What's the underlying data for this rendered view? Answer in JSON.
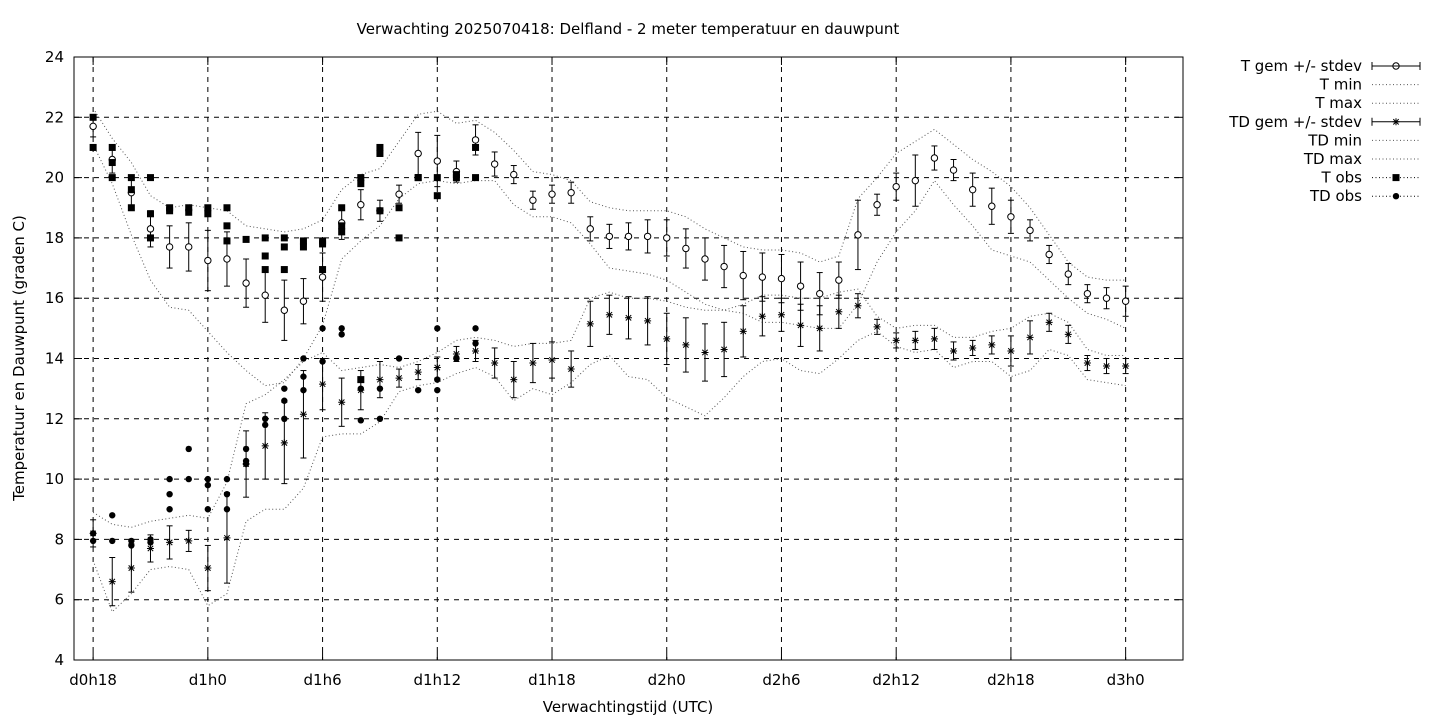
{
  "chart_data": {
    "type": "scatter",
    "title": "Verwachting 2025070418: Delfland - 2 meter temperatuur en dauwpunt",
    "xlabel": "Verwachtingstijd (UTC)",
    "ylabel": "Temperatuur en Dauwpunt (graden C)",
    "xlim": [
      -1,
      57
    ],
    "ylim": [
      4,
      24
    ],
    "x_unit": "hours since d0h18",
    "yticks": [
      4,
      6,
      8,
      10,
      12,
      14,
      16,
      18,
      20,
      22,
      24
    ],
    "xticks": [
      {
        "x": 0,
        "label": "d0h18"
      },
      {
        "x": 6,
        "label": "d1h0"
      },
      {
        "x": 12,
        "label": "d1h6"
      },
      {
        "x": 18,
        "label": "d1h12"
      },
      {
        "x": 24,
        "label": "d1h18"
      },
      {
        "x": 30,
        "label": "d2h0"
      },
      {
        "x": 36,
        "label": "d2h6"
      },
      {
        "x": 42,
        "label": "d2h12"
      },
      {
        "x": 48,
        "label": "d2h18"
      },
      {
        "x": 54,
        "label": "d3h0"
      }
    ],
    "grid": true,
    "legend_position": "outside-top-right",
    "legend": [
      {
        "key": "t_gem",
        "label": "T gem +/- stdev"
      },
      {
        "key": "t_min",
        "label": "T min"
      },
      {
        "key": "t_max",
        "label": "T max"
      },
      {
        "key": "td_gem",
        "label": "TD gem +/- stdev"
      },
      {
        "key": "td_min",
        "label": "TD min"
      },
      {
        "key": "td_max",
        "label": "TD max"
      },
      {
        "key": "t_obs",
        "label": "T obs"
      },
      {
        "key": "td_obs",
        "label": "TD obs"
      }
    ],
    "t_gem": {
      "x": [
        0,
        1,
        2,
        3,
        4,
        5,
        6,
        7,
        8,
        9,
        10,
        11,
        12,
        13,
        14,
        15,
        16,
        17,
        18,
        19,
        20,
        21,
        22,
        23,
        24,
        25,
        26,
        27,
        28,
        29,
        30,
        31,
        32,
        33,
        34,
        35,
        36,
        37,
        38,
        39,
        40,
        41,
        42,
        43,
        44,
        45,
        46,
        47,
        48,
        49,
        50,
        51,
        52,
        53,
        54
      ],
      "y": [
        21.7,
        20.6,
        19.5,
        18.3,
        17.7,
        17.7,
        17.25,
        17.3,
        16.5,
        16.1,
        15.6,
        15.9,
        16.7,
        18.5,
        19.1,
        18.9,
        19.45,
        20.8,
        20.55,
        20.2,
        21.25,
        20.45,
        20.1,
        19.25,
        19.45,
        19.5,
        18.3,
        18.05,
        18.05,
        18.05,
        18.0,
        17.65,
        17.3,
        17.05,
        16.75,
        16.7,
        16.65,
        16.4,
        16.15,
        16.6,
        18.1,
        19.1,
        19.7,
        19.9,
        20.65,
        20.25,
        19.6,
        19.05,
        18.7,
        18.25,
        17.45,
        16.8,
        16.15,
        16.0,
        15.9
      ],
      "stdev": [
        0.35,
        0.45,
        0.55,
        0.6,
        0.7,
        0.8,
        1.0,
        0.9,
        0.8,
        0.9,
        1.0,
        0.75,
        0.8,
        0.55,
        0.5,
        0.35,
        0.3,
        0.7,
        0.85,
        0.35,
        0.5,
        0.4,
        0.3,
        0.3,
        0.3,
        0.35,
        0.4,
        0.4,
        0.45,
        0.55,
        0.6,
        0.65,
        0.7,
        0.7,
        0.8,
        0.8,
        0.8,
        0.8,
        0.7,
        0.6,
        1.15,
        0.35,
        0.45,
        0.85,
        0.4,
        0.35,
        0.55,
        0.6,
        0.55,
        0.35,
        0.3,
        0.35,
        0.3,
        0.35,
        0.5
      ]
    },
    "t_min": {
      "x": [
        0,
        1,
        2,
        3,
        4,
        5,
        6,
        7,
        8,
        9,
        10,
        11,
        12,
        13,
        14,
        15,
        16,
        17,
        18,
        19,
        20,
        21,
        22,
        23,
        24,
        25,
        26,
        27,
        28,
        29,
        30,
        31,
        32,
        33,
        34,
        35,
        36,
        37,
        38,
        39,
        40,
        41,
        42,
        43,
        44,
        45,
        46,
        47,
        48,
        49,
        50,
        51,
        52,
        53,
        54
      ],
      "y": [
        21.1,
        19.8,
        18.1,
        16.6,
        15.7,
        15.6,
        14.9,
        14.2,
        13.6,
        13.1,
        13.2,
        14.0,
        15.1,
        17.3,
        17.9,
        18.4,
        19.3,
        19.8,
        19.9,
        19.8,
        19.9,
        19.9,
        19.1,
        18.7,
        18.7,
        18.5,
        17.8,
        17.0,
        16.9,
        16.8,
        16.6,
        16.2,
        15.8,
        15.6,
        15.5,
        15.2,
        15.2,
        15.1,
        15.0,
        15.0,
        15.8,
        17.2,
        18.2,
        18.9,
        19.9,
        19.1,
        18.4,
        17.6,
        17.4,
        17.2,
        16.6,
        16.0,
        15.5,
        15.3,
        15.0
      ]
    },
    "t_max": {
      "x": [
        0,
        1,
        2,
        3,
        4,
        5,
        6,
        7,
        8,
        9,
        10,
        11,
        12,
        13,
        14,
        15,
        16,
        17,
        18,
        19,
        20,
        21,
        22,
        23,
        24,
        25,
        26,
        27,
        28,
        29,
        30,
        31,
        32,
        33,
        34,
        35,
        36,
        37,
        38,
        39,
        40,
        41,
        42,
        43,
        44,
        45,
        46,
        47,
        48,
        49,
        50,
        51,
        52,
        53,
        54
      ],
      "y": [
        22.3,
        21.3,
        20.5,
        19.4,
        19.0,
        19.1,
        19.0,
        18.9,
        18.4,
        18.3,
        18.2,
        18.3,
        18.6,
        19.6,
        20.1,
        20.3,
        21.2,
        22.1,
        22.2,
        21.8,
        21.9,
        21.5,
        20.9,
        20.2,
        20.1,
        19.9,
        19.2,
        19.0,
        18.9,
        18.9,
        18.9,
        18.7,
        18.3,
        18.0,
        17.7,
        17.6,
        17.6,
        17.5,
        17.2,
        17.4,
        19.3,
        20.0,
        20.8,
        21.2,
        21.6,
        21.1,
        20.6,
        20.2,
        19.7,
        19.0,
        18.1,
        17.2,
        16.7,
        16.6,
        16.6
      ]
    },
    "td_gem": {
      "x": [
        0,
        1,
        2,
        3,
        4,
        5,
        6,
        7,
        8,
        9,
        10,
        11,
        12,
        13,
        14,
        15,
        16,
        17,
        18,
        19,
        20,
        21,
        22,
        23,
        24,
        25,
        26,
        27,
        28,
        29,
        30,
        31,
        32,
        33,
        34,
        35,
        36,
        37,
        38,
        39,
        40,
        41,
        42,
        43,
        44,
        45,
        46,
        47,
        48,
        49,
        50,
        51,
        52,
        53,
        54
      ],
      "y": [
        8.2,
        6.6,
        7.05,
        7.7,
        7.9,
        7.95,
        7.05,
        8.05,
        10.5,
        11.1,
        11.2,
        12.15,
        13.15,
        12.55,
        12.95,
        13.3,
        13.35,
        13.55,
        13.7,
        14.15,
        14.25,
        13.85,
        13.3,
        13.85,
        13.95,
        13.65,
        15.15,
        15.45,
        15.35,
        15.25,
        14.65,
        14.45,
        14.2,
        14.3,
        14.9,
        15.4,
        15.45,
        15.1,
        15.0,
        15.55,
        15.75,
        15.05,
        14.6,
        14.6,
        14.65,
        14.25,
        14.35,
        14.45,
        14.25,
        14.7,
        15.2,
        14.8,
        13.85,
        13.75,
        13.75
      ],
      "stdev": [
        0.45,
        0.8,
        0.8,
        0.45,
        0.55,
        0.35,
        0.75,
        1.5,
        1.1,
        1.1,
        1.35,
        1.45,
        0.85,
        0.8,
        0.65,
        0.6,
        0.3,
        0.25,
        0.35,
        0.25,
        0.35,
        0.5,
        0.6,
        0.65,
        0.6,
        0.6,
        0.75,
        0.65,
        0.7,
        0.8,
        0.85,
        0.9,
        0.95,
        0.9,
        0.85,
        0.65,
        0.55,
        0.7,
        0.75,
        0.55,
        0.4,
        0.25,
        0.25,
        0.3,
        0.35,
        0.3,
        0.25,
        0.3,
        0.5,
        0.55,
        0.3,
        0.3,
        0.25,
        0.25,
        0.25
      ]
    },
    "td_min": {
      "x": [
        0,
        1,
        2,
        3,
        4,
        5,
        6,
        7,
        8,
        9,
        10,
        11,
        12,
        13,
        14,
        15,
        16,
        17,
        18,
        19,
        20,
        21,
        22,
        23,
        24,
        25,
        26,
        27,
        28,
        29,
        30,
        31,
        32,
        33,
        34,
        35,
        36,
        37,
        38,
        39,
        40,
        41,
        42,
        43,
        44,
        45,
        46,
        47,
        48,
        49,
        50,
        51,
        52,
        53,
        54
      ],
      "y": [
        7.3,
        5.6,
        6.2,
        7.0,
        7.1,
        7.0,
        5.8,
        6.2,
        8.6,
        9.0,
        9.0,
        9.7,
        11.4,
        11.5,
        11.5,
        11.9,
        12.9,
        13.1,
        13.2,
        13.5,
        13.7,
        13.4,
        12.6,
        13.0,
        12.8,
        13.2,
        13.8,
        14.1,
        13.4,
        13.3,
        12.7,
        12.4,
        12.1,
        12.7,
        13.4,
        13.9,
        14.0,
        13.6,
        13.5,
        14.0,
        14.6,
        14.9,
        14.4,
        14.2,
        14.3,
        13.7,
        13.9,
        13.9,
        13.4,
        13.6,
        14.3,
        14.1,
        13.3,
        13.2,
        13.1
      ]
    },
    "td_max": {
      "x": [
        0,
        1,
        2,
        3,
        4,
        5,
        6,
        7,
        8,
        9,
        10,
        11,
        12,
        13,
        14,
        15,
        16,
        17,
        18,
        19,
        20,
        21,
        22,
        23,
        24,
        25,
        26,
        27,
        28,
        29,
        30,
        31,
        32,
        33,
        34,
        35,
        36,
        37,
        38,
        39,
        40,
        41,
        42,
        43,
        44,
        45,
        46,
        47,
        48,
        49,
        50,
        51,
        52,
        53,
        54
      ],
      "y": [
        8.9,
        8.5,
        8.4,
        8.6,
        8.7,
        8.8,
        8.7,
        9.9,
        12.5,
        12.8,
        13.3,
        13.9,
        14.2,
        13.6,
        13.7,
        13.8,
        13.7,
        13.9,
        14.2,
        14.6,
        14.7,
        14.6,
        14.4,
        14.5,
        14.5,
        14.6,
        16.0,
        16.2,
        16.0,
        16.0,
        15.9,
        15.7,
        15.6,
        15.6,
        15.8,
        16.1,
        16.1,
        16.0,
        16.0,
        16.2,
        16.3,
        15.4,
        15.0,
        15.1,
        15.1,
        14.7,
        14.7,
        14.9,
        15.0,
        15.4,
        15.5,
        15.2,
        14.3,
        14.1,
        14.1
      ]
    },
    "t_obs": {
      "x": [
        0,
        0,
        1,
        1,
        1,
        2,
        2,
        2,
        3,
        3,
        3,
        4,
        4,
        5,
        5,
        6,
        6,
        7,
        7,
        7,
        8,
        9,
        9,
        9,
        10,
        10,
        10,
        11,
        11,
        12,
        12,
        12,
        13,
        13,
        13,
        14,
        14,
        14,
        15,
        15,
        15,
        16,
        16,
        17,
        17,
        18,
        18,
        19,
        19,
        20,
        20
      ],
      "y": [
        22.0,
        21.0,
        21.0,
        20.5,
        20.0,
        20.0,
        19.6,
        19.0,
        20.0,
        18.8,
        18.0,
        19.0,
        18.9,
        19.0,
        18.85,
        19.0,
        18.8,
        19.0,
        18.4,
        17.9,
        17.95,
        18.0,
        17.4,
        16.95,
        18.0,
        17.7,
        16.95,
        17.9,
        17.7,
        17.9,
        17.8,
        16.95,
        19.0,
        18.4,
        18.2,
        20.0,
        19.8,
        13.3,
        21.0,
        20.8,
        18.9,
        19.0,
        18.0,
        20.0,
        20.0,
        20.0,
        19.4,
        20.1,
        20.0,
        21.0,
        20.0
      ]
    },
    "td_obs": {
      "x": [
        0,
        0,
        1,
        1,
        2,
        2,
        3,
        3,
        4,
        4,
        4,
        5,
        5,
        6,
        6,
        6,
        7,
        7,
        7,
        8,
        8,
        8,
        9,
        9,
        10,
        10,
        10,
        11,
        11,
        11,
        12,
        12,
        13,
        13,
        14,
        14,
        14,
        15,
        15,
        16,
        17,
        18,
        18,
        18,
        19,
        19,
        20,
        20
      ],
      "y": [
        8.2,
        7.95,
        8.8,
        7.95,
        7.95,
        7.8,
        8.0,
        7.9,
        10.0,
        9.5,
        9.0,
        11.0,
        10.0,
        10.0,
        9.8,
        9.0,
        10.0,
        9.5,
        9.0,
        11.0,
        10.6,
        10.5,
        12.0,
        11.8,
        13.0,
        12.6,
        12.0,
        14.0,
        13.4,
        12.95,
        15.0,
        13.9,
        15.0,
        14.8,
        13.3,
        13.0,
        11.95,
        13.0,
        12.0,
        14.0,
        12.95,
        15.0,
        13.3,
        12.95,
        14.0,
        14.0,
        15.0,
        14.5
      ]
    }
  }
}
